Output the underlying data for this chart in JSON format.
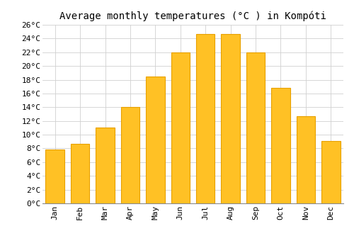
{
  "title": "Average monthly temperatures (°C ) in Kompóti",
  "months": [
    "Jan",
    "Feb",
    "Mar",
    "Apr",
    "May",
    "Jun",
    "Jul",
    "Aug",
    "Sep",
    "Oct",
    "Nov",
    "Dec"
  ],
  "values": [
    7.8,
    8.7,
    11.0,
    14.0,
    18.5,
    22.0,
    24.7,
    24.7,
    22.0,
    16.8,
    12.7,
    9.1
  ],
  "bar_color": "#FFC125",
  "bar_edge_color": "#E8A000",
  "ylim": [
    0,
    26
  ],
  "yticks": [
    0,
    2,
    4,
    6,
    8,
    10,
    12,
    14,
    16,
    18,
    20,
    22,
    24,
    26
  ],
  "background_color": "#ffffff",
  "grid_color": "#d0d0d0",
  "title_fontsize": 10,
  "tick_fontsize": 8,
  "bar_width": 0.75
}
